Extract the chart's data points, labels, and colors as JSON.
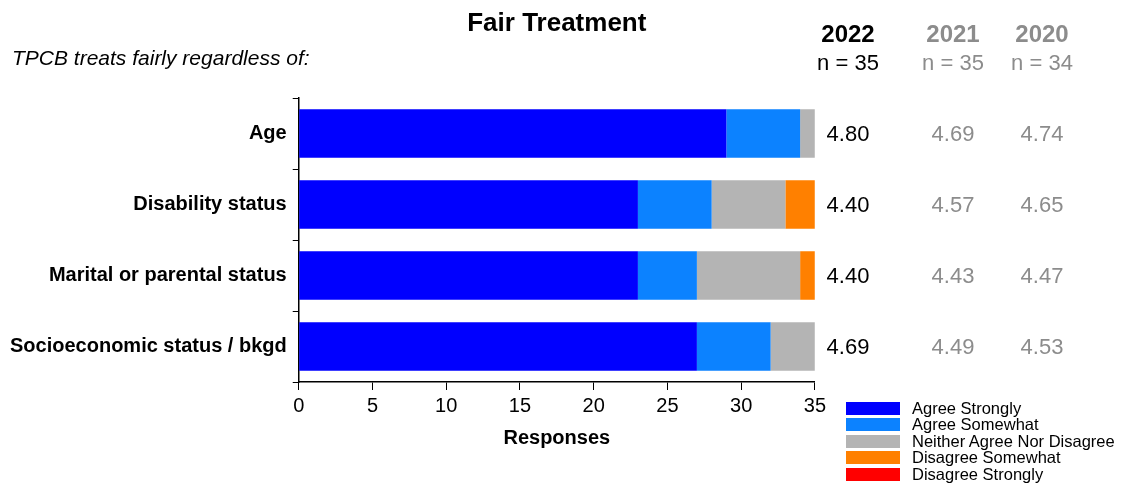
{
  "chart_data": [
    {
      "type": "bar",
      "orientation": "horizontal",
      "stacked": true,
      "title": "Fair Treatment",
      "subtitle": "TPCB treats fairly regardless of:",
      "xlabel": "Responses",
      "categories": [
        "Age",
        "Disability status",
        "Marital or parental status",
        "Socioeconomic status / bkgd"
      ],
      "xlim": [
        0,
        35
      ],
      "xticks": [
        0,
        5,
        10,
        15,
        20,
        25,
        30,
        35
      ],
      "grid": false,
      "legend": "bottom right",
      "series": [
        {
          "name": "Agree Strongly",
          "color": "#0000ff",
          "values": [
            29,
            23,
            23,
            27
          ]
        },
        {
          "name": "Agree Somewhat",
          "color": "#0c82ff",
          "values": [
            5,
            5,
            4,
            5
          ]
        },
        {
          "name": "Neither Agree Nor Disagree",
          "color": "#b4b4b4",
          "values": [
            1,
            5,
            7,
            3
          ]
        },
        {
          "name": "Disagree Somewhat",
          "color": "#ff8000",
          "values": [
            0,
            2,
            1,
            0
          ]
        },
        {
          "name": "Disagree Strongly",
          "color": "#ff0000",
          "values": [
            0,
            0,
            0,
            0
          ]
        }
      ]
    },
    {
      "type": "other",
      "annotations": [
        "n = 35",
        "4.80",
        "4.40",
        "4.40",
        "4.69",
        "n = 35",
        "4.69",
        "4.57",
        "4.43",
        "4.49",
        "n = 34",
        "4.74",
        "4.65",
        "4.47",
        "4.53"
      ],
      "series": [
        {
          "name": "2022",
          "color": "#000000"
        },
        {
          "name": "2021",
          "color": "#8c8c8c"
        },
        {
          "name": "2020",
          "color": "#8c8c8c"
        }
      ]
    }
  ]
}
